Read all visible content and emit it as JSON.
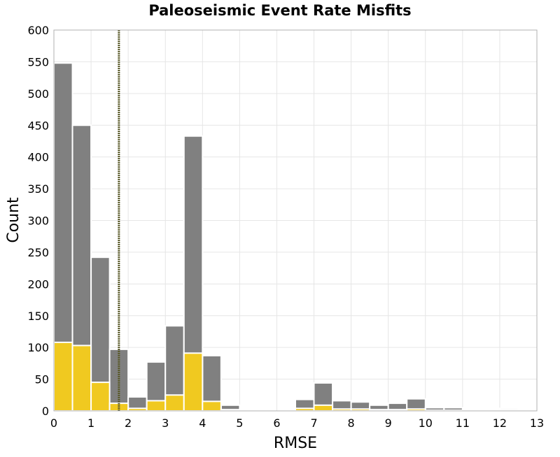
{
  "chart_data": {
    "type": "bar",
    "title": "Paleoseismic Event Rate Misfits",
    "xlabel": "RMSE",
    "ylabel": "Count",
    "xlim": [
      0,
      13
    ],
    "ylim": [
      0,
      600
    ],
    "xticks": [
      "0",
      "1",
      "2",
      "3",
      "4",
      "5",
      "6",
      "7",
      "8",
      "9",
      "10",
      "11",
      "12",
      "13"
    ],
    "yticks": [
      "0",
      "50",
      "100",
      "150",
      "200",
      "250",
      "300",
      "350",
      "400",
      "450",
      "500",
      "550",
      "600"
    ],
    "grid": true,
    "bin_width": 0.5,
    "bin_starts": [
      0.0,
      0.5,
      1.0,
      1.5,
      2.0,
      2.5,
      3.0,
      3.5,
      4.0,
      4.5,
      5.0,
      5.5,
      6.0,
      6.5,
      7.0,
      7.5,
      8.0,
      8.5,
      9.0,
      9.5,
      10.0,
      10.5,
      11.0,
      11.5,
      12.0,
      12.5
    ],
    "series": [
      {
        "color": "#808080",
        "values": [
          548,
          450,
          242,
          97,
          22,
          77,
          134,
          433,
          87,
          9,
          0,
          0,
          0,
          18,
          44,
          16,
          14,
          9,
          12,
          19,
          5,
          5,
          0,
          0,
          4,
          1
        ]
      },
      {
        "color": "#f0c920",
        "values": [
          108,
          103,
          45,
          12,
          4,
          16,
          25,
          91,
          15,
          2,
          0,
          0,
          0,
          4,
          9,
          3,
          3,
          2,
          2,
          3,
          1,
          1,
          0,
          0,
          2,
          0
        ]
      }
    ],
    "reference_line": {
      "x": 1.75,
      "color": "#5a5a2a",
      "style": "dotted"
    }
  }
}
